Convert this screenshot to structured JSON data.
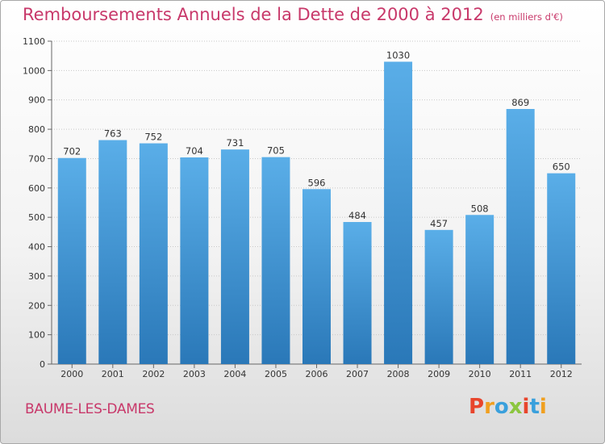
{
  "title": "Remboursements Annuels de la Dette de 2000 à 2012",
  "subtitle": "(en milliers d'€)",
  "location": "BAUME-LES-DAMES",
  "logo": {
    "text": "Proxiti",
    "colors": [
      "#e8452c",
      "#f0a020",
      "#3aa0dc",
      "#8cc63f",
      "#e8452c",
      "#3aa0dc",
      "#f0a020"
    ]
  },
  "colors": {
    "title": "#c8386a",
    "bar_top": "#5aaee8",
    "bar_bottom": "#2a78b8"
  },
  "chart_data": {
    "type": "bar",
    "categories": [
      "2000",
      "2001",
      "2002",
      "2003",
      "2004",
      "2005",
      "2006",
      "2007",
      "2008",
      "2009",
      "2010",
      "2011",
      "2012"
    ],
    "values": [
      702,
      763,
      752,
      704,
      731,
      705,
      596,
      484,
      1030,
      457,
      508,
      869,
      650
    ],
    "ylim": [
      0,
      1100
    ],
    "yticks": [
      0,
      100,
      200,
      300,
      400,
      500,
      600,
      700,
      800,
      900,
      1000,
      1100
    ],
    "grid": true,
    "data_labels": true
  }
}
